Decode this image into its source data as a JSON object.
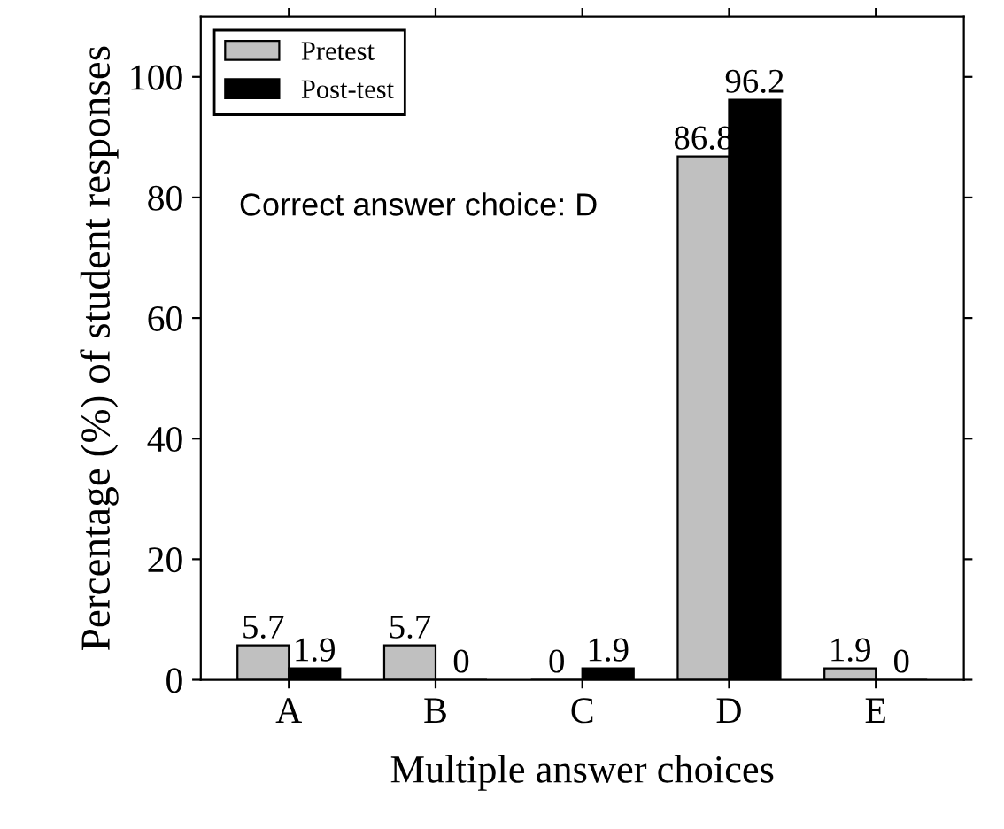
{
  "chart_data": {
    "type": "bar",
    "xlabel": "Multiple answer choices",
    "ylabel": "Percentage (%) of student responses",
    "categories": [
      "A",
      "B",
      "C",
      "D",
      "E"
    ],
    "series": [
      {
        "name": "Pretest",
        "color": "#c0c0c0",
        "values": [
          5.7,
          5.7,
          0,
          86.8,
          1.9
        ]
      },
      {
        "name": "Post-test",
        "color": "#000000",
        "values": [
          1.9,
          0,
          1.9,
          96.2,
          0
        ]
      }
    ],
    "ylim": [
      0,
      110
    ],
    "yticks": [
      0,
      20,
      40,
      60,
      80,
      100
    ],
    "data_labels": true,
    "legend": "top left",
    "grid": false,
    "annotations": [
      "Correct answer choice: D"
    ]
  }
}
